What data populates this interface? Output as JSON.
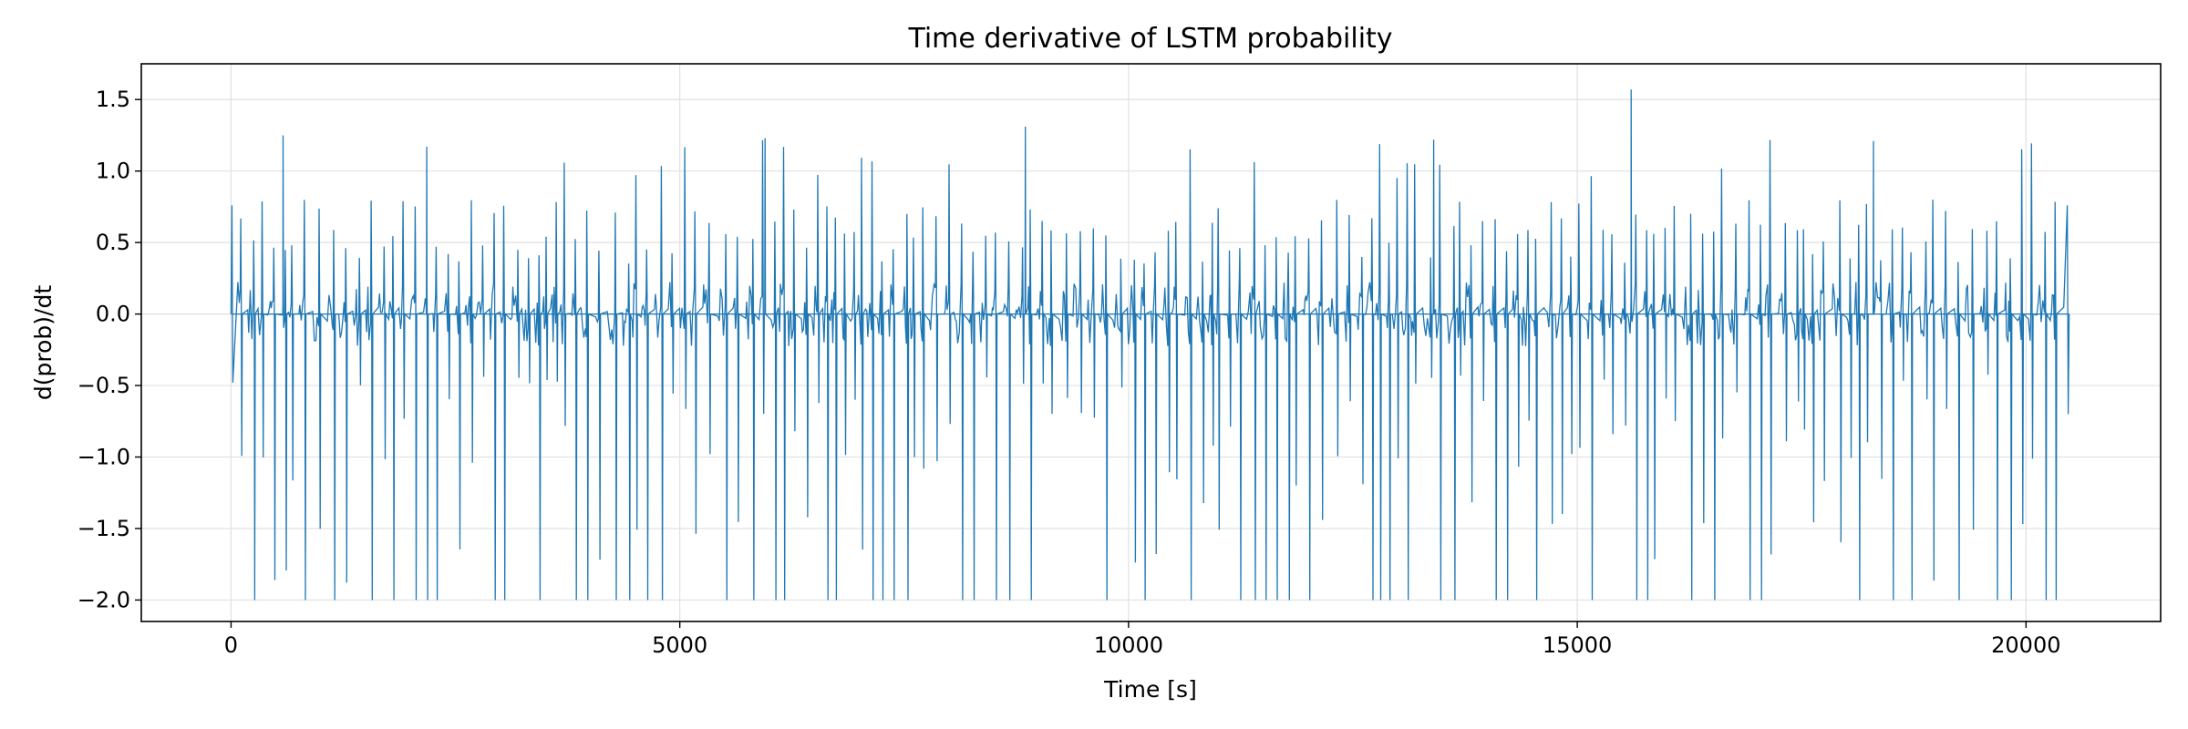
{
  "chart_data": {
    "type": "line",
    "title": "Time derivative of LSTM probability",
    "xlabel": "Time [s]",
    "ylabel": "d(prob)/dt",
    "xlim": [
      -1000,
      21500
    ],
    "ylim": [
      -2.15,
      1.75
    ],
    "grid": true,
    "x_ticks": [
      0,
      5000,
      10000,
      15000,
      20000
    ],
    "x_tick_labels": [
      "0",
      "5000",
      "10000",
      "15000",
      "20000"
    ],
    "y_ticks": [
      1.5,
      1.0,
      0.5,
      0.0,
      -0.5,
      -1.0,
      -1.5,
      -2.0
    ],
    "y_tick_labels": [
      "1.5",
      "1.0",
      "0.5",
      "0.0",
      "−0.5",
      "−1.0",
      "−1.5",
      "−2.0"
    ],
    "series": [
      {
        "name": "d(prob)/dt",
        "color": "#1f77b4",
        "x_start": 0,
        "x_end": 20480,
        "sample_step_s": 4,
        "spike_period_s_approx": 110,
        "peak_max": 1.57,
        "clip_min": -2.0,
        "baseline": 0.0,
        "notable_peaks": [
          {
            "x": 580,
            "y": 1.25
          },
          {
            "x": 2180,
            "y": 1.17
          },
          {
            "x": 5950,
            "y": 1.23
          },
          {
            "x": 8850,
            "y": 1.31
          },
          {
            "x": 13400,
            "y": 1.22
          },
          {
            "x": 15600,
            "y": 1.57
          },
          {
            "x": 18300,
            "y": 1.21
          }
        ]
      }
    ]
  },
  "colors": {
    "line": "#1f77b4",
    "grid": "#e0e0e0",
    "axes": "#000000",
    "background": "#ffffff"
  }
}
